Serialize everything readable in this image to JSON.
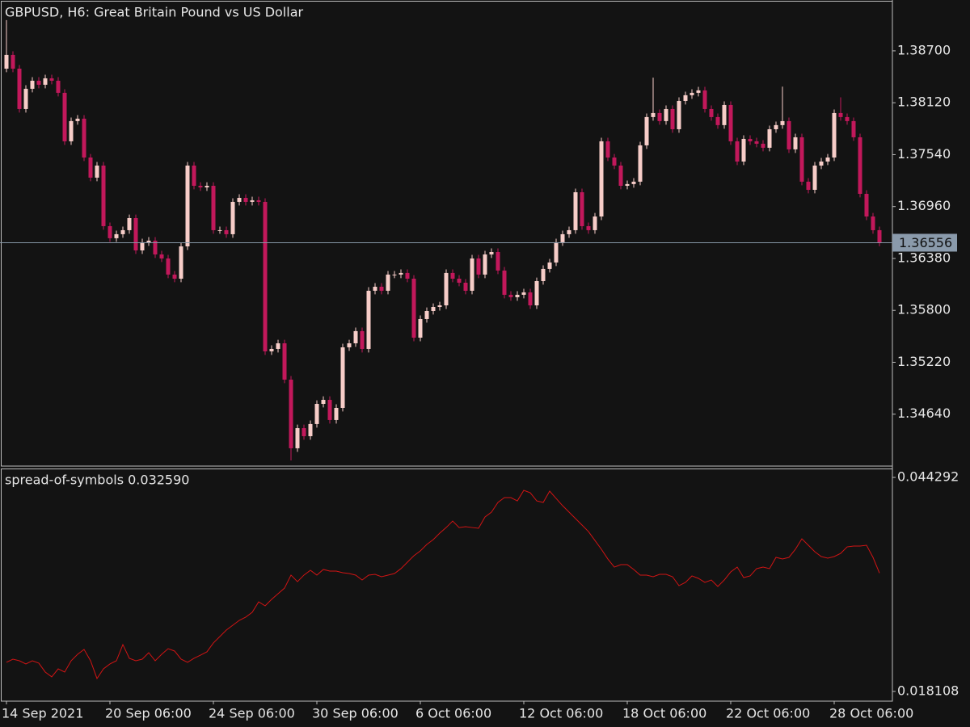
{
  "chart_data": [
    {
      "type": "candlestick",
      "title": "GBPUSD, H6:  Great Britain Pound vs US Dollar",
      "up_color": "#f7cdc8",
      "down_color": "#c2185b",
      "categories": [
        "14 Sep 2021",
        null,
        null,
        null,
        null,
        null,
        null,
        null,
        null,
        null,
        null,
        null,
        null,
        null,
        null,
        null,
        "20 Sep 06:00",
        null,
        null,
        null,
        null,
        null,
        null,
        null,
        null,
        null,
        null,
        null,
        null,
        null,
        null,
        null,
        "24 Sep 06:00",
        null,
        null,
        null,
        null,
        null,
        null,
        null,
        null,
        null,
        null,
        null,
        null,
        null,
        null,
        null,
        "30 Sep 06:00",
        null,
        null,
        null,
        null,
        null,
        null,
        null,
        null,
        null,
        null,
        null,
        null,
        null,
        null,
        null,
        "6 Oct 06:00",
        null,
        null,
        null,
        null,
        null,
        null,
        null,
        null,
        null,
        null,
        null,
        null,
        null,
        null,
        null,
        "12 Oct 06:00",
        null,
        null,
        null,
        null,
        null,
        null,
        null,
        null,
        null,
        null,
        null,
        null,
        null,
        null,
        null,
        "18 Oct 06:00",
        null,
        null,
        null,
        null,
        null,
        null,
        null,
        null,
        null,
        null,
        null,
        null,
        null,
        null,
        null,
        "22 Oct 06:00",
        null,
        null,
        null,
        null,
        null,
        null,
        null,
        null,
        null,
        null,
        null,
        null,
        null,
        null,
        null,
        "28 Oct 06:00",
        null,
        null,
        null,
        null,
        null,
        null,
        null
      ],
      "open": [
        1.38501,
        1.38655,
        1.38501,
        1.3805,
        1.38276,
        1.38366,
        1.38321,
        1.38393,
        1.38366,
        1.38231,
        1.37689,
        1.37915,
        1.37942,
        1.37508,
        1.37283,
        1.37418,
        1.36741,
        1.36606,
        1.36651,
        1.36696,
        1.36831,
        1.3647,
        1.36561,
        1.36579,
        1.36425,
        1.3638,
        1.362,
        1.36154,
        1.36515,
        1.37418,
        1.37192,
        1.37174,
        1.37192,
        1.36696,
        1.36696,
        1.36651,
        1.37012,
        1.37057,
        1.37012,
        1.3703,
        1.37012,
        1.35342,
        1.35369,
        1.35432,
        1.35026,
        1.34259,
        1.34484,
        1.34394,
        1.3453,
        1.34755,
        1.348,
        1.34575,
        1.3471,
        1.35387,
        1.35432,
        1.35568,
        1.35369,
        1.36019,
        1.36064,
        1.36019,
        1.362,
        1.362,
        1.36218,
        1.36154,
        1.35495,
        1.35703,
        1.35793,
        1.35838,
        1.35856,
        1.36218,
        1.36154,
        1.36109,
        1.36019,
        1.3638,
        1.362,
        1.36425,
        1.36452,
        1.36245,
        1.35974,
        1.35947,
        1.35974,
        1.36001,
        1.35856,
        1.36127,
        1.36263,
        1.36335,
        1.36561,
        1.36651,
        1.36696,
        1.3712,
        1.36741,
        1.36696,
        1.36849,
        1.37689,
        1.37508,
        1.37418,
        1.37192,
        1.37211,
        1.37238,
        1.37644,
        1.3796,
        1.38005,
        1.37915,
        1.3805,
        1.37824,
        1.3814,
        1.38204,
        1.38231,
        1.38258,
        1.3805,
        1.3796,
        1.3787,
        1.38095,
        1.37689,
        1.37463,
        1.37716,
        1.37689,
        1.37662,
        1.37617,
        1.37824,
        1.3787,
        1.37915,
        1.37599,
        1.37734,
        1.37238,
        1.37147,
        1.37418,
        1.37463,
        1.37508,
        1.38005,
        1.3796,
        1.37915,
        1.37734,
        1.37102,
        1.36849,
        1.36696
      ],
      "high": [
        1.39043,
        1.38695,
        1.38541,
        1.38316,
        1.38406,
        1.38406,
        1.38433,
        1.38433,
        1.38406,
        1.38271,
        1.37955,
        1.37982,
        1.37982,
        1.37548,
        1.37458,
        1.37458,
        1.36781,
        1.36691,
        1.36736,
        1.36871,
        1.36871,
        1.36601,
        1.36619,
        1.36619,
        1.36465,
        1.3642,
        1.3624,
        1.36555,
        1.37458,
        1.37458,
        1.37232,
        1.37232,
        1.37232,
        1.36736,
        1.36736,
        1.37052,
        1.37097,
        1.37097,
        1.3707,
        1.3707,
        1.37052,
        1.35409,
        1.35472,
        1.35472,
        1.35066,
        1.34524,
        1.34524,
        1.3457,
        1.34795,
        1.3484,
        1.3484,
        1.3475,
        1.35427,
        1.35472,
        1.35608,
        1.35608,
        1.36059,
        1.36104,
        1.36104,
        1.3624,
        1.3624,
        1.36258,
        1.36258,
        1.36194,
        1.35743,
        1.35833,
        1.35878,
        1.35896,
        1.36258,
        1.36258,
        1.36194,
        1.36149,
        1.3642,
        1.3642,
        1.36465,
        1.36492,
        1.36492,
        1.36285,
        1.36014,
        1.36014,
        1.36041,
        1.36041,
        1.36167,
        1.36303,
        1.36375,
        1.36601,
        1.36691,
        1.36736,
        1.3716,
        1.3716,
        1.36781,
        1.36889,
        1.37729,
        1.37729,
        1.37548,
        1.37458,
        1.37251,
        1.37278,
        1.37684,
        1.38,
        1.384,
        1.38045,
        1.3809,
        1.3809,
        1.3818,
        1.38244,
        1.38271,
        1.38298,
        1.38298,
        1.3809,
        1.38,
        1.38135,
        1.38135,
        1.37729,
        1.37756,
        1.37756,
        1.37729,
        1.37702,
        1.37864,
        1.3791,
        1.383,
        1.37955,
        1.37774,
        1.37774,
        1.37278,
        1.37458,
        1.37503,
        1.37548,
        1.38045,
        1.3818,
        1.38,
        1.37955,
        1.37774,
        1.37142,
        1.36889,
        1.36736
      ],
      "low": [
        1.38461,
        1.38461,
        1.3801,
        1.3801,
        1.38236,
        1.38281,
        1.38281,
        1.38326,
        1.38191,
        1.37649,
        1.37649,
        1.37875,
        1.37468,
        1.37243,
        1.37243,
        1.36701,
        1.36566,
        1.36566,
        1.36611,
        1.36656,
        1.3643,
        1.3643,
        1.36521,
        1.36385,
        1.3634,
        1.3616,
        1.36114,
        1.36114,
        1.36475,
        1.37152,
        1.37134,
        1.37134,
        1.36656,
        1.36656,
        1.36611,
        1.36611,
        1.36972,
        1.36972,
        1.36972,
        1.36972,
        1.35302,
        1.35302,
        1.35329,
        1.34986,
        1.34123,
        1.34219,
        1.34354,
        1.34354,
        1.3449,
        1.34715,
        1.34535,
        1.34535,
        1.3467,
        1.35347,
        1.35392,
        1.35329,
        1.35329,
        1.35979,
        1.35979,
        1.35979,
        1.3616,
        1.3616,
        1.36114,
        1.35455,
        1.35455,
        1.35663,
        1.35753,
        1.35798,
        1.35816,
        1.36114,
        1.36069,
        1.35979,
        1.35979,
        1.3616,
        1.3616,
        1.36385,
        1.36205,
        1.35934,
        1.35907,
        1.35907,
        1.35934,
        1.35816,
        1.35816,
        1.36087,
        1.36223,
        1.36295,
        1.36521,
        1.36611,
        1.36656,
        1.36701,
        1.36656,
        1.36656,
        1.36809,
        1.37468,
        1.37378,
        1.37152,
        1.37152,
        1.37171,
        1.37198,
        1.37604,
        1.3792,
        1.37875,
        1.37875,
        1.37784,
        1.37784,
        1.381,
        1.38164,
        1.38191,
        1.3801,
        1.3792,
        1.3783,
        1.3783,
        1.37649,
        1.37423,
        1.37423,
        1.37649,
        1.37622,
        1.37577,
        1.37577,
        1.37784,
        1.3783,
        1.37559,
        1.37559,
        1.37198,
        1.37107,
        1.37107,
        1.37378,
        1.37423,
        1.37468,
        1.3792,
        1.37875,
        1.37694,
        1.37062,
        1.36809,
        1.36656,
        1.36516
      ],
      "close": [
        1.38655,
        1.38501,
        1.3805,
        1.38276,
        1.38366,
        1.38321,
        1.38393,
        1.38366,
        1.38231,
        1.37689,
        1.37915,
        1.37942,
        1.37508,
        1.37283,
        1.37418,
        1.36741,
        1.36606,
        1.36651,
        1.36696,
        1.36831,
        1.3647,
        1.36561,
        1.36579,
        1.36425,
        1.3638,
        1.362,
        1.36154,
        1.36515,
        1.37418,
        1.37192,
        1.37174,
        1.37192,
        1.36696,
        1.36696,
        1.36651,
        1.37012,
        1.37057,
        1.37012,
        1.3703,
        1.37012,
        1.35342,
        1.35369,
        1.35432,
        1.35026,
        1.34259,
        1.34484,
        1.34394,
        1.3453,
        1.34755,
        1.348,
        1.34575,
        1.3471,
        1.35387,
        1.35432,
        1.35568,
        1.35369,
        1.36019,
        1.36064,
        1.36019,
        1.362,
        1.362,
        1.36218,
        1.36154,
        1.35495,
        1.35703,
        1.35793,
        1.35838,
        1.35856,
        1.36218,
        1.36154,
        1.36109,
        1.36019,
        1.3638,
        1.362,
        1.36425,
        1.36452,
        1.36245,
        1.35974,
        1.35947,
        1.35974,
        1.36001,
        1.35856,
        1.36127,
        1.36263,
        1.36335,
        1.36561,
        1.36651,
        1.36696,
        1.3712,
        1.36741,
        1.36696,
        1.36849,
        1.37689,
        1.37508,
        1.37418,
        1.37192,
        1.37211,
        1.37238,
        1.37644,
        1.3796,
        1.38005,
        1.37915,
        1.3805,
        1.37824,
        1.3814,
        1.38204,
        1.38231,
        1.38258,
        1.3805,
        1.3796,
        1.3787,
        1.38095,
        1.37689,
        1.37463,
        1.37716,
        1.37689,
        1.37662,
        1.37617,
        1.37824,
        1.3787,
        1.37915,
        1.37599,
        1.37734,
        1.37238,
        1.37147,
        1.37418,
        1.37463,
        1.37508,
        1.38005,
        1.3796,
        1.37915,
        1.37734,
        1.37102,
        1.36849,
        1.36696,
        1.36556
      ],
      "ylim": [
        1.3406,
        1.3925
      ],
      "yticks": [
        {
          "value": 1.387,
          "label": "1.38700"
        },
        {
          "value": 1.3812,
          "label": "1.38120"
        },
        {
          "value": 1.3754,
          "label": "1.37540"
        },
        {
          "value": 1.3696,
          "label": "1.36960"
        },
        {
          "value": 1.3638,
          "label": "1.36380"
        },
        {
          "value": 1.358,
          "label": "1.35800"
        },
        {
          "value": 1.3522,
          "label": "1.35220"
        },
        {
          "value": 1.3464,
          "label": "1.34640"
        }
      ]
    },
    {
      "type": "line",
      "title": "spread-of-symbols 0.032590",
      "color": "#d01414",
      "values": [
        0.02167,
        0.02206,
        0.02186,
        0.02147,
        0.02186,
        0.02157,
        0.02048,
        0.01989,
        0.02087,
        0.02048,
        0.02186,
        0.02265,
        0.02325,
        0.02186,
        0.01969,
        0.02087,
        0.02147,
        0.02186,
        0.02384,
        0.02216,
        0.02186,
        0.02206,
        0.02285,
        0.02186,
        0.02265,
        0.02334,
        0.02305,
        0.02206,
        0.02167,
        0.02216,
        0.02255,
        0.02295,
        0.02404,
        0.02483,
        0.02562,
        0.02621,
        0.0268,
        0.0272,
        0.02779,
        0.02907,
        0.02858,
        0.02937,
        0.03006,
        0.03075,
        0.03234,
        0.03154,
        0.03234,
        0.03293,
        0.03234,
        0.03303,
        0.03283,
        0.03283,
        0.03263,
        0.03253,
        0.03234,
        0.03174,
        0.03234,
        0.03243,
        0.03214,
        0.03234,
        0.03253,
        0.03313,
        0.03392,
        0.03471,
        0.0353,
        0.03609,
        0.03668,
        0.03747,
        0.03816,
        0.03895,
        0.03816,
        0.03826,
        0.03816,
        0.03807,
        0.03945,
        0.04004,
        0.04123,
        0.04182,
        0.04182,
        0.04142,
        0.04271,
        0.04241,
        0.04142,
        0.04123,
        0.04261,
        0.04172,
        0.04083,
        0.04004,
        0.03925,
        0.03846,
        0.03767,
        0.03658,
        0.0355,
        0.03431,
        0.03332,
        0.03362,
        0.03362,
        0.03303,
        0.03234,
        0.03234,
        0.03214,
        0.03243,
        0.03243,
        0.03214,
        0.03105,
        0.03145,
        0.03224,
        0.03194,
        0.03145,
        0.03174,
        0.03095,
        0.03174,
        0.03273,
        0.03332,
        0.03204,
        0.03224,
        0.03313,
        0.03332,
        0.03313,
        0.03451,
        0.03431,
        0.03451,
        0.0355,
        0.03678,
        0.03599,
        0.0352,
        0.03461,
        0.03441,
        0.03461,
        0.035,
        0.03579,
        0.03589,
        0.03589,
        0.03599,
        0.03451,
        0.03259
      ],
      "ylim": [
        0.01692,
        0.04538
      ],
      "yticks": [
        0.044292,
        0.018108
      ]
    }
  ]
}
